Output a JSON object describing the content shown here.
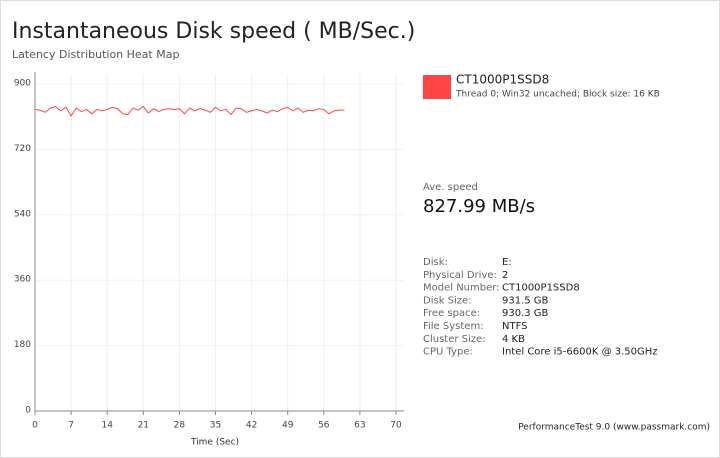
{
  "chart_data": {
    "type": "line",
    "title": "Instantaneous Disk speed ( MB/Sec.)",
    "subtitle": "Latency Distribution Heat Map",
    "x_label": "Time (Sec)",
    "x": [
      0,
      1,
      2,
      3,
      4,
      5,
      6,
      7,
      8,
      9,
      10,
      11,
      12,
      13,
      14,
      15,
      16,
      17,
      18,
      19,
      20,
      21,
      22,
      23,
      24,
      25,
      26,
      27,
      28,
      29,
      30,
      31,
      32,
      33,
      34,
      35,
      36,
      37,
      38,
      39,
      40,
      41,
      42,
      43,
      44,
      45,
      46,
      47,
      48,
      49,
      50,
      51,
      52,
      53,
      54,
      55,
      56,
      57,
      58,
      59,
      60
    ],
    "series": [
      {
        "name": "CT1000P1SSD8",
        "color": "#ff4444",
        "values": [
          830,
          828,
          822,
          834,
          838,
          826,
          836,
          812,
          834,
          824,
          830,
          818,
          830,
          826,
          830,
          836,
          832,
          818,
          816,
          834,
          828,
          838,
          820,
          832,
          824,
          830,
          832,
          830,
          832,
          818,
          834,
          826,
          832,
          828,
          822,
          836,
          826,
          830,
          816,
          834,
          832,
          822,
          826,
          830,
          826,
          820,
          828,
          824,
          832,
          836,
          826,
          834,
          822,
          828,
          826,
          832,
          830,
          818,
          826,
          828,
          828
        ]
      }
    ],
    "legend_subtitle": "Thread 0; Win32 uncached; Block size: 16 KB",
    "average_label": "Ave. speed",
    "average_value": "827.99 MB/s",
    "details": [
      {
        "label": "Disk:",
        "value": "E:"
      },
      {
        "label": "Physical Drive:",
        "value": "2"
      },
      {
        "label": "Model Number:",
        "value": "CT1000P1SSD8"
      },
      {
        "label": "Disk Size:",
        "value": "931.5 GB"
      },
      {
        "label": "Free space:",
        "value": "930.3 GB"
      },
      {
        "label": "File System:",
        "value": "NTFS"
      },
      {
        "label": "Cluster Size:",
        "value": "4 KB"
      },
      {
        "label": "CPU Type:",
        "value": "Intel Core i5-6600K @ 3.50GHz"
      }
    ],
    "footer": "PerformanceTest 9.0 (www.passmark.com)",
    "xlim": [
      0,
      70
    ],
    "xticks": [
      0,
      7,
      14,
      21,
      28,
      35,
      42,
      49,
      56,
      63,
      70
    ],
    "ylim": [
      0,
      900
    ],
    "yticks": [
      0,
      180,
      360,
      540,
      720,
      900
    ],
    "grid": true
  }
}
